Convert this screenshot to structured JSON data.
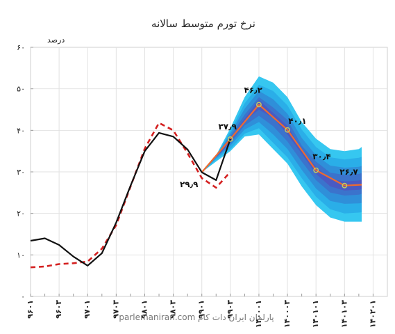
{
  "chart_data": {
    "type": "line",
    "title": "نرخ تورم متوسط سالانه",
    "ylabel": "درصد",
    "xlabel": "",
    "ylim": [
      0,
      60
    ],
    "yticks": [
      {
        "value": 0,
        "label": "۰"
      },
      {
        "value": 10,
        "label": "۱۰"
      },
      {
        "value": 20,
        "label": "۲۰"
      },
      {
        "value": 30,
        "label": "۳۰"
      },
      {
        "value": 40,
        "label": "۴۰"
      },
      {
        "value": 50,
        "label": "۵۰"
      },
      {
        "value": 60,
        "label": "۶۰"
      }
    ],
    "categories": [
      "۹۶۰۱",
      "",
      "۹۶۰۳",
      "",
      "۹۷۰۱",
      "",
      "۹۷۰۳",
      "",
      "۹۸۰۱",
      "",
      "۹۸۰۳",
      "",
      "۹۹۰۱",
      "",
      "۹۹۰۳",
      "",
      "۱۴۰۰۰۱",
      "",
      "۱۴۰۰۰۳",
      "",
      "۱۴۰۱۰۱",
      "",
      "۱۴۰۱۰۳",
      "",
      "۱۴۰۲۰۱"
    ],
    "grid": true,
    "series": [
      {
        "name": "actual",
        "color": "#111111",
        "style": "solid",
        "points": [
          [
            0,
            13.4
          ],
          [
            1,
            14
          ],
          [
            2,
            12.4
          ],
          [
            3,
            9.6
          ],
          [
            4,
            7.4
          ],
          [
            5,
            10.4
          ],
          [
            6,
            17.8
          ],
          [
            7,
            26.6
          ],
          [
            8,
            35
          ],
          [
            9,
            39.4
          ],
          [
            10,
            38.5
          ],
          [
            11,
            35.4
          ],
          [
            12,
            29.9
          ],
          [
            13,
            28
          ],
          [
            14,
            37.9
          ]
        ]
      },
      {
        "name": "model",
        "color": "#d42020",
        "style": "dashed",
        "points": [
          [
            0,
            7
          ],
          [
            1,
            7.2
          ],
          [
            2,
            7.8
          ],
          [
            3,
            8
          ],
          [
            4,
            8.4
          ],
          [
            5,
            11.5
          ],
          [
            6,
            17.2
          ],
          [
            7,
            26.4
          ],
          [
            8,
            35.6
          ],
          [
            9,
            41.8
          ],
          [
            10,
            40
          ],
          [
            11,
            34.5
          ],
          [
            12,
            28.5
          ],
          [
            13,
            26.2
          ],
          [
            14,
            30
          ]
        ]
      },
      {
        "name": "forecast",
        "color": "#ee6a2f",
        "marker_color": "#c6d060",
        "style": "solid",
        "points": [
          [
            12,
            29.9
          ],
          [
            14,
            37.9
          ],
          [
            16,
            46.2
          ],
          [
            18,
            40.1
          ],
          [
            20,
            30.4
          ],
          [
            22,
            26.7
          ],
          [
            23.2,
            26.9
          ]
        ]
      }
    ],
    "fan_bands": {
      "x": [
        12,
        13,
        14,
        15,
        16,
        17,
        18,
        19,
        20,
        21,
        22,
        23,
        23.2
      ],
      "colors": [
        "#36c7f0",
        "#2aaee8",
        "#2f8fd9",
        "#3b73cc",
        "#4a5ac2"
      ],
      "bands": [
        {
          "lower": [
            29.9,
            32.5,
            35,
            38.5,
            39,
            35.5,
            32,
            26.5,
            22,
            19,
            18,
            18,
            18
          ],
          "upper": [
            29.9,
            34,
            40.5,
            48,
            53,
            51.5,
            48,
            42,
            38,
            35.5,
            35,
            35.5,
            36
          ]
        },
        {
          "lower": [
            29.9,
            33,
            35.5,
            39.2,
            40.5,
            37,
            33.5,
            28.5,
            24,
            21,
            20,
            20.2,
            20.3
          ],
          "upper": [
            29.9,
            33.8,
            39.8,
            46.5,
            51,
            49.5,
            46,
            40.2,
            36,
            33.5,
            33,
            33.4,
            33.6
          ]
        },
        {
          "lower": [
            29.9,
            33.3,
            36.3,
            40.2,
            42,
            39,
            35.5,
            30.5,
            26,
            23,
            22.3,
            22.4,
            22.5
          ],
          "upper": [
            29.9,
            33.6,
            39.2,
            45.2,
            49.5,
            47.5,
            44,
            38.2,
            34,
            31.5,
            31,
            31.2,
            31.4
          ]
        },
        {
          "lower": [
            29.9,
            33.5,
            36.8,
            41.2,
            43.5,
            41,
            37.3,
            32.5,
            28,
            25,
            24.3,
            24.5,
            24.7
          ],
          "upper": [
            29.9,
            33.5,
            38.6,
            43.8,
            48,
            45.5,
            42.5,
            36.3,
            32.5,
            29.8,
            29.3,
            29.5,
            29.7
          ]
        },
        {
          "lower": [
            29.9,
            33.5,
            37.2,
            42.2,
            45,
            43,
            39,
            34.4,
            29.5,
            26.5,
            25.5,
            25.7,
            25.9
          ],
          "upper": [
            29.9,
            33.5,
            38,
            42.8,
            47.3,
            44.2,
            41.1,
            35.2,
            31.2,
            28.2,
            27.7,
            27.9,
            28.1
          ]
        }
      ]
    },
    "annotations": [
      {
        "text": "۴۶٫۲",
        "x": 15.6,
        "y": 49
      },
      {
        "text": "۴۰٫۱",
        "x": 18.7,
        "y": 41.6
      },
      {
        "text": "۳۰٫۴",
        "x": 20.4,
        "y": 33
      },
      {
        "text": "۲۶٫۷",
        "x": 22.3,
        "y": 29.3
      },
      {
        "text": "۳۷٫۹",
        "x": 13.8,
        "y": 40.2
      },
      {
        "text": "۲۹٫۹",
        "x": 11.1,
        "y": 26.3
      }
    ]
  },
  "watermark": "parlemaniran.com پارلمان ایران دات کام"
}
